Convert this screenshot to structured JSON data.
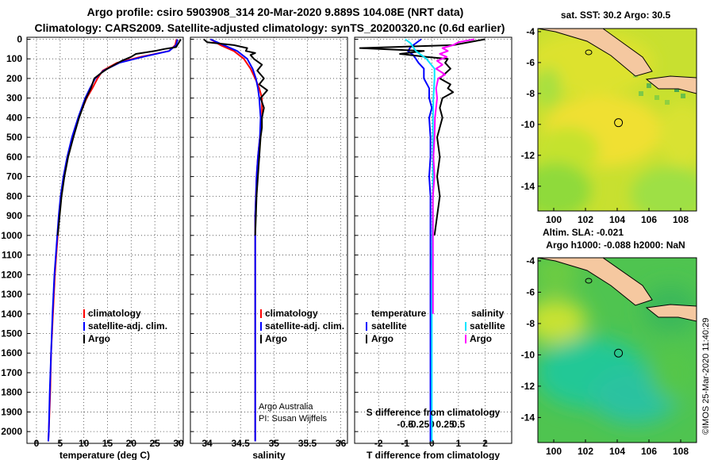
{
  "header": {
    "line1": "Argo profile: csiro 5903908_314 20-Mar-2020 9.889S 104.08E (NRT data)",
    "line2": "Climatology: CARS2009. Satellite-adjusted climatology: synTS_20200320.nc (0.6d earlier)"
  },
  "colors": {
    "climatology": "#ff0000",
    "satellite": "#0000ff",
    "argo": "#000000",
    "satellite_s": "#00e5ff",
    "argo_s": "#ff00ff",
    "land": "#f5c8a0"
  },
  "depth_axis": {
    "ticks": [
      "0",
      "100",
      "200",
      "300",
      "400",
      "500",
      "600",
      "700",
      "800",
      "900",
      "1000",
      "1100",
      "1200",
      "1300",
      "1400",
      "1500",
      "1600",
      "1700",
      "1800",
      "1900",
      "2000"
    ]
  },
  "legend1": {
    "climatology": "climatology",
    "satellite": "satellite-adj. clim.",
    "argo": "Argo"
  },
  "legend2": {
    "climatology": "climatology",
    "satellite": "satellite-adj. clim.",
    "argo": "Argo"
  },
  "legend3": {
    "temperature": "temperature",
    "salinity": "salinity",
    "t_sat": "satellite",
    "t_argo": "Argo",
    "s_sat": "satellite",
    "s_argo": "Argo"
  },
  "credits": {
    "line1": "Argo Australia",
    "line2": "PI: Susan Wijffels"
  },
  "stamp": "©IMOS 25-Mar-2020 11:40:29",
  "maps": {
    "sst_title": "sat. SST: 30.2 Argo: 30.5",
    "sla_title1": "Altim. SLA: -0.021",
    "sla_title2": "Argo h1000: -0.088 h2000: NaN",
    "lon_ticks": [
      "100",
      "102",
      "104",
      "106",
      "108"
    ],
    "lat_ticks": [
      "-4",
      "-6",
      "-8",
      "-10",
      "-12",
      "-14"
    ]
  },
  "chart_data": [
    {
      "type": "line",
      "title": "",
      "xlabel": "temperature (deg C)",
      "ylabel": "",
      "xlim": [
        -2,
        31
      ],
      "ylim": [
        2060,
        -10
      ],
      "xticks": [
        "0",
        "5",
        "10",
        "15",
        "20",
        "25",
        "30"
      ],
      "series": [
        {
          "name": "climatology",
          "color": "red",
          "depth": [
            0,
            30,
            60,
            90,
            120,
            160,
            200,
            250,
            300,
            400,
            500,
            600,
            700,
            800,
            900,
            1000,
            1200,
            1400,
            1600,
            1800,
            2000,
            2050
          ],
          "values": [
            29.6,
            29.3,
            28,
            22,
            17,
            14,
            12.9,
            11.8,
            10.6,
            8.9,
            7.6,
            6.6,
            5.8,
            5.2,
            4.8,
            4.5,
            3.9,
            3.5,
            3.1,
            2.9,
            2.6,
            2.5
          ]
        },
        {
          "name": "satellite-adj. clim.",
          "color": "blue",
          "depth": [
            0,
            30,
            60,
            90,
            120,
            160,
            200,
            250,
            300,
            400,
            500,
            600,
            700,
            800,
            900,
            1000,
            1200,
            1400,
            1600,
            1800,
            2000,
            2050
          ],
          "values": [
            29.8,
            29.5,
            28,
            22.5,
            17.5,
            14.2,
            12.4,
            11.3,
            10.3,
            8.8,
            7.5,
            6.5,
            5.7,
            5.1,
            4.7,
            4.4,
            3.8,
            3.4,
            3.1,
            2.8,
            2.6,
            2.5
          ]
        },
        {
          "name": "Argo",
          "color": "black",
          "depth": [
            0,
            20,
            40,
            50,
            60,
            75,
            90,
            110,
            130,
            150,
            170,
            200,
            250,
            300,
            400,
            500,
            600,
            700,
            800,
            900,
            1000
          ],
          "values": [
            30.5,
            30,
            29.5,
            27,
            25,
            21,
            20,
            18,
            16.5,
            15,
            13.8,
            12.2,
            11.5,
            10.5,
            9,
            7.8,
            6.7,
            5.9,
            5.3,
            4.9,
            4.5
          ]
        }
      ]
    },
    {
      "type": "line",
      "title": "",
      "xlabel": "salinity",
      "ylabel": "",
      "xlim": [
        33.75,
        36.1
      ],
      "ylim": [
        2060,
        -10
      ],
      "xticks": [
        "34",
        "34.5",
        "35",
        "35.5",
        "36"
      ],
      "series": [
        {
          "name": "climatology",
          "color": "red",
          "depth": [
            0,
            30,
            60,
            100,
            150,
            200,
            250,
            300,
            400,
            500,
            600,
            700,
            800,
            900,
            1000,
            1200,
            1400,
            1600,
            1800,
            2000,
            2050
          ],
          "values": [
            34.05,
            34.2,
            34.4,
            34.55,
            34.65,
            34.72,
            34.78,
            34.82,
            34.82,
            34.79,
            34.76,
            34.74,
            34.73,
            34.72,
            34.72,
            34.72,
            34.72,
            34.72,
            34.72,
            34.72,
            34.72
          ]
        },
        {
          "name": "satellite-adj. clim.",
          "color": "blue",
          "depth": [
            0,
            30,
            60,
            100,
            150,
            200,
            250,
            300,
            400,
            500,
            600,
            700,
            800,
            900,
            1000,
            1200,
            1400,
            1600,
            1800,
            2000,
            2050
          ],
          "values": [
            34.05,
            34.25,
            34.45,
            34.6,
            34.68,
            34.73,
            34.76,
            34.78,
            34.8,
            34.79,
            34.76,
            34.74,
            34.73,
            34.72,
            34.72,
            34.72,
            34.72,
            34.72,
            34.72,
            34.72,
            34.72
          ]
        },
        {
          "name": "Argo",
          "color": "black",
          "depth": [
            0,
            15,
            30,
            45,
            60,
            70,
            80,
            100,
            130,
            160,
            200,
            230,
            260,
            300,
            350,
            400,
            450,
            500,
            600,
            700,
            800,
            900,
            1000
          ],
          "values": [
            33.95,
            34.0,
            34.4,
            34.6,
            34.58,
            34.72,
            34.65,
            34.7,
            34.82,
            34.75,
            34.85,
            34.78,
            34.9,
            34.8,
            34.85,
            34.82,
            34.82,
            34.8,
            34.78,
            34.76,
            34.74,
            34.73,
            34.72
          ]
        }
      ]
    },
    {
      "type": "line",
      "title": "",
      "xlabel": "T difference from climatology",
      "ylabel": "",
      "xlim": [
        -2.9,
        3.0
      ],
      "ylim": [
        2060,
        -10
      ],
      "xticks": [
        "-2",
        "-1",
        "0",
        "1",
        "2"
      ],
      "secondary_xlabel": "S difference from climatology",
      "secondary_xticks": [
        "-0.5",
        "-0.25",
        "0",
        "0.25",
        "0.5"
      ],
      "series": [
        {
          "name": "temperature satellite",
          "color": "blue",
          "depth": [
            0,
            40,
            60,
            80,
            100,
            120,
            150,
            200,
            250,
            300,
            350,
            400,
            500,
            600,
            700,
            800,
            900,
            1000,
            1200,
            1400,
            1600,
            1800,
            2000,
            2050
          ],
          "values": [
            -0.4,
            -0.8,
            -0.9,
            -0.7,
            -0.6,
            -0.5,
            -0.3,
            -0.3,
            -0.1,
            -0.1,
            0,
            -0.1,
            -0.05,
            -0.05,
            -0.1,
            -0.05,
            -0.05,
            -0.05,
            -0.05,
            -0.05,
            -0.05,
            -0.05,
            -0.05,
            -0.05
          ]
        },
        {
          "name": "temperature Argo",
          "color": "black",
          "depth": [
            0,
            30,
            45,
            60,
            75,
            90,
            100,
            120,
            150,
            200,
            230,
            250,
            270,
            300,
            350,
            400,
            500,
            600,
            700,
            800,
            900,
            1000
          ],
          "values": [
            2.0,
            0.8,
            -2.7,
            -0.3,
            -1.2,
            -0.2,
            0.6,
            0.5,
            0.7,
            0.3,
            0.7,
            0.6,
            0.8,
            0.4,
            0.3,
            0.4,
            0.2,
            0.3,
            0.2,
            0.3,
            0.2,
            0.1
          ]
        },
        {
          "name": "salinity satellite",
          "color": "cyan",
          "depth": [
            0,
            20,
            40,
            60,
            80,
            100,
            150,
            200,
            300,
            400,
            600,
            800,
            1000,
            1200,
            1400,
            1600,
            1800,
            2000,
            2050
          ],
          "values": [
            -0.5,
            -0.4,
            -0.35,
            -0.3,
            -0.2,
            -0.1,
            0.05,
            0.05,
            0.03,
            0.02,
            0.02,
            0.02,
            0.01,
            0.0,
            0.0,
            0.0,
            0.0,
            0.0,
            0.0
          ]
        },
        {
          "name": "salinity Argo",
          "color": "magenta",
          "depth": [
            0,
            15,
            30,
            45,
            60,
            75,
            90,
            110,
            130,
            150,
            180,
            200,
            250,
            300,
            400,
            500,
            600,
            700,
            800,
            1000,
            1200,
            1400
          ],
          "values": [
            0.8,
            0.5,
            0.4,
            0.2,
            0.3,
            0.15,
            0.28,
            0.1,
            0.2,
            0.08,
            0.25,
            0.12,
            0.08,
            0.1,
            0.06,
            0.05,
            0.03,
            0.05,
            0.02,
            0.02,
            0.02,
            0.02
          ]
        }
      ]
    },
    {
      "type": "heatmap",
      "title": "sat. SST: 30.2 Argo: 30.5",
      "xlabel": "",
      "ylabel": "",
      "xlim": [
        99,
        109
      ],
      "ylim": [
        -15.6,
        -3.8
      ],
      "xticks": [
        "100",
        "102",
        "104",
        "106",
        "108"
      ],
      "yticks": [
        "-4",
        "-6",
        "-8",
        "-10",
        "-12",
        "-14"
      ],
      "float_position": {
        "lon": 104.08,
        "lat": -9.889
      }
    },
    {
      "type": "heatmap",
      "title": "Altim. SLA: -0.021",
      "subtitle": "Argo h1000: -0.088 h2000: NaN",
      "xlabel": "",
      "ylabel": "",
      "xlim": [
        99,
        109
      ],
      "ylim": [
        -15.6,
        -3.8
      ],
      "xticks": [
        "100",
        "102",
        "104",
        "106",
        "108"
      ],
      "yticks": [
        "-4",
        "-6",
        "-8",
        "-10",
        "-12",
        "-14"
      ],
      "float_position": {
        "lon": 104.08,
        "lat": -9.889
      }
    }
  ]
}
